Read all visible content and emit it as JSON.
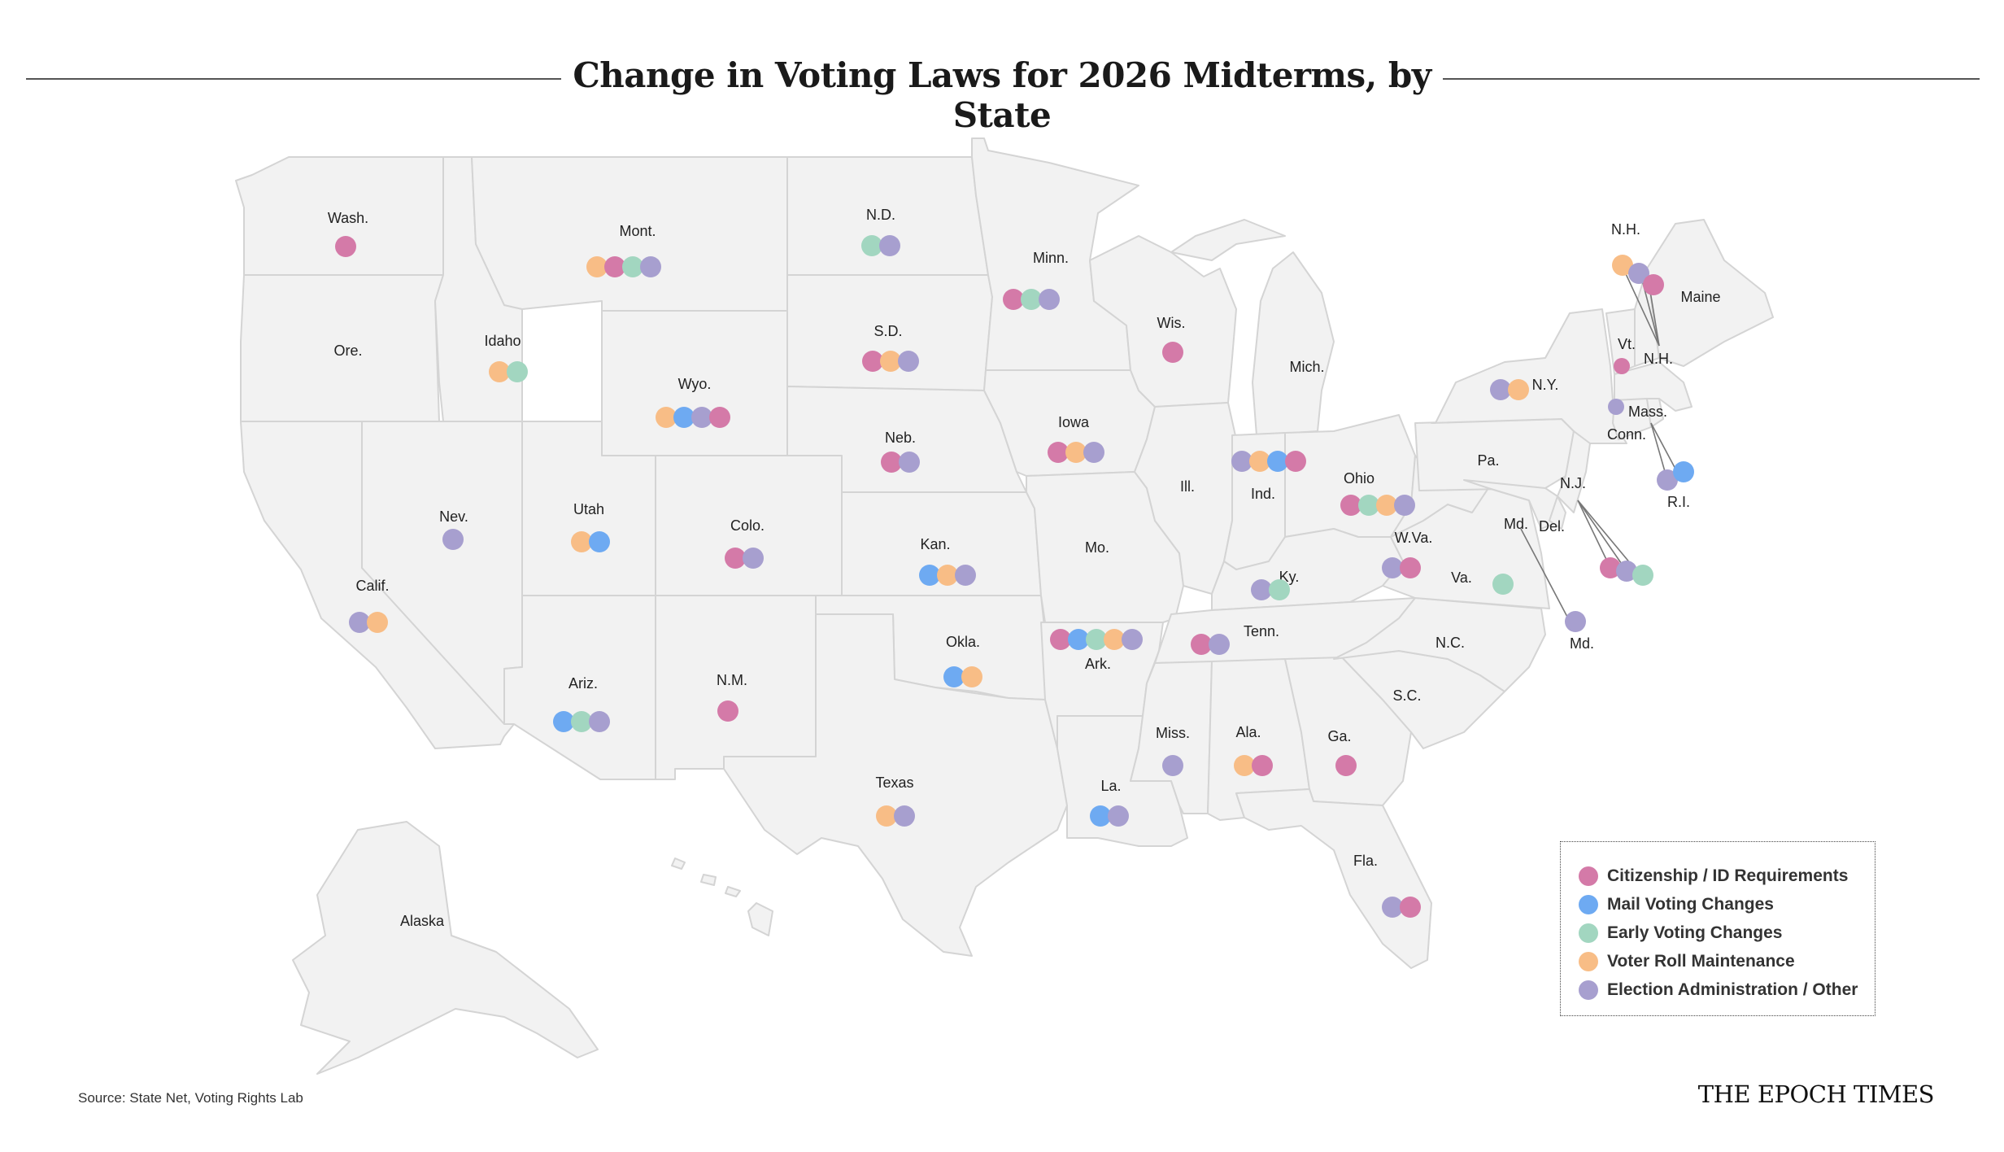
{
  "title": "Change in Voting Laws for 2026 Midterms, by State",
  "source": "Source: State Net, Voting Rights Lab",
  "brand": "THE EPOCH TIMES",
  "colors": {
    "citizenship": "#d47aa8",
    "mail": "#6eaaf2",
    "early": "#a2d6c0",
    "roll": "#f8bd86",
    "admin": "#a79fcf"
  },
  "legend": [
    {
      "key": "citizenship",
      "label": "Citizenship / ID Requirements"
    },
    {
      "key": "mail",
      "label": "Mail Voting Changes"
    },
    {
      "key": "early",
      "label": "Early Voting Changes"
    },
    {
      "key": "roll",
      "label": "Voter Roll Maintenance"
    },
    {
      "key": "admin",
      "label": "Election Administration / Other"
    }
  ],
  "states": {
    "wa": {
      "label": "Wash.",
      "changes": [
        "citizenship"
      ]
    },
    "or": {
      "label": "Ore.",
      "changes": []
    },
    "ca": {
      "label": "Calif.",
      "changes": [
        "admin",
        "roll"
      ]
    },
    "nv": {
      "label": "Nev.",
      "changes": [
        "admin"
      ]
    },
    "id": {
      "label": "Idaho",
      "changes": [
        "roll",
        "early"
      ]
    },
    "mt": {
      "label": "Mont.",
      "changes": [
        "roll",
        "citizenship",
        "early",
        "admin"
      ]
    },
    "wy": {
      "label": "Wyo.",
      "changes": [
        "roll",
        "mail",
        "admin",
        "citizenship"
      ]
    },
    "ut": {
      "label": "Utah",
      "changes": [
        "roll",
        "mail"
      ]
    },
    "az": {
      "label": "Ariz.",
      "changes": [
        "mail",
        "early",
        "admin"
      ]
    },
    "co": {
      "label": "Colo.",
      "changes": [
        "citizenship",
        "admin"
      ]
    },
    "nm": {
      "label": "N.M.",
      "changes": [
        "citizenship"
      ]
    },
    "nd": {
      "label": "N.D.",
      "changes": [
        "early",
        "admin"
      ]
    },
    "sd": {
      "label": "S.D.",
      "changes": [
        "citizenship",
        "roll",
        "admin"
      ]
    },
    "ne": {
      "label": "Neb.",
      "changes": [
        "citizenship",
        "admin"
      ]
    },
    "ks": {
      "label": "Kan.",
      "changes": [
        "mail",
        "roll",
        "admin"
      ]
    },
    "ok": {
      "label": "Okla.",
      "changes": [
        "mail",
        "roll"
      ]
    },
    "tx": {
      "label": "Texas",
      "changes": [
        "roll",
        "admin"
      ]
    },
    "mn": {
      "label": "Minn.",
      "changes": [
        "citizenship",
        "early",
        "admin"
      ]
    },
    "ia": {
      "label": "Iowa",
      "changes": [
        "citizenship",
        "roll",
        "admin"
      ]
    },
    "mo": {
      "label": "Mo.",
      "changes": []
    },
    "ar": {
      "label": "Ark.",
      "changes": [
        "citizenship",
        "mail",
        "early",
        "roll",
        "admin"
      ]
    },
    "la": {
      "label": "La.",
      "changes": [
        "mail",
        "admin"
      ]
    },
    "wi": {
      "label": "Wis.",
      "changes": [
        "citizenship"
      ]
    },
    "il": {
      "label": "Ill.",
      "changes": []
    },
    "mi": {
      "label": "Mich.",
      "changes": []
    },
    "in": {
      "label": "Ind.",
      "changes": [
        "admin",
        "roll",
        "mail",
        "citizenship"
      ]
    },
    "oh": {
      "label": "Ohio",
      "changes": [
        "citizenship",
        "early",
        "roll",
        "admin"
      ]
    },
    "ky": {
      "label": "Ky.",
      "changes": [
        "admin",
        "early"
      ]
    },
    "tn": {
      "label": "Tenn.",
      "changes": [
        "citizenship",
        "admin"
      ]
    },
    "ms": {
      "label": "Miss.",
      "changes": [
        "admin"
      ]
    },
    "al": {
      "label": "Ala.",
      "changes": [
        "roll",
        "citizenship"
      ]
    },
    "ga": {
      "label": "Ga.",
      "changes": [
        "citizenship"
      ]
    },
    "fl": {
      "label": "Fla.",
      "changes": [
        "admin",
        "citizenship"
      ]
    },
    "sc": {
      "label": "S.C.",
      "changes": []
    },
    "nc": {
      "label": "N.C.",
      "changes": []
    },
    "va": {
      "label": "Va.",
      "changes": [
        "early"
      ]
    },
    "wv": {
      "label": "W.Va.",
      "changes": [
        "admin",
        "citizenship"
      ]
    },
    "pa": {
      "label": "Pa.",
      "changes": []
    },
    "ny": {
      "label": "N.Y.",
      "changes": [
        "admin",
        "roll"
      ]
    },
    "nj": {
      "label": "N.J.",
      "changes": [
        "citizenship",
        "admin",
        "early"
      ]
    },
    "de": {
      "label": "Del.",
      "changes": []
    },
    "md": {
      "label": "Md.",
      "label2": "Md.",
      "changes": [
        "admin"
      ]
    },
    "vt": {
      "label": "Vt.",
      "changes": [
        "citizenship"
      ]
    },
    "nh": {
      "label": "N.H.",
      "label2": "N.H.",
      "changes": [
        "roll",
        "admin",
        "citizenship"
      ]
    },
    "ma": {
      "label": "Mass.",
      "changes": [
        "admin"
      ]
    },
    "ct": {
      "label": "Conn.",
      "changes": []
    },
    "ri": {
      "label": "R.I.",
      "changes": [
        "admin",
        "mail"
      ]
    },
    "me": {
      "label": "Maine",
      "changes": []
    },
    "ak": {
      "label": "Alaska",
      "changes": []
    }
  }
}
